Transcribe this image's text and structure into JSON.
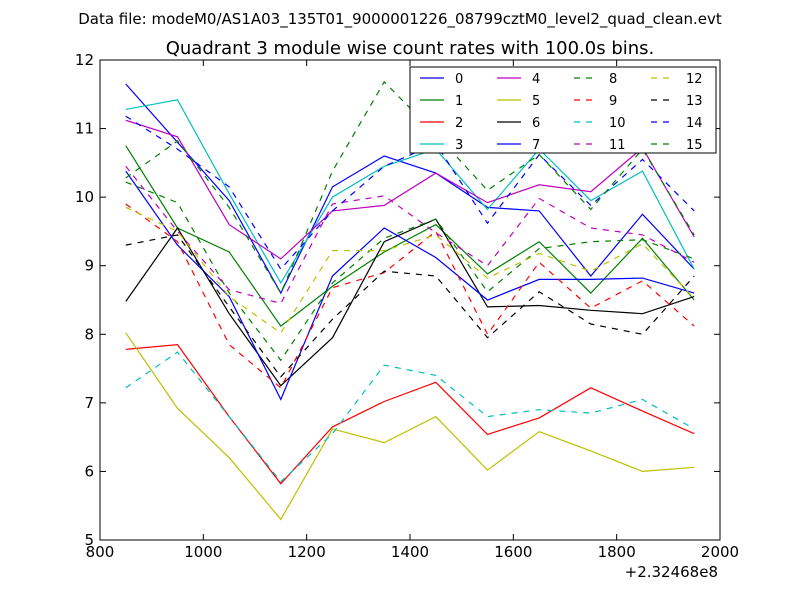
{
  "figure": {
    "suptitle": "Data file: modeM0/AS1A03_135T01_9000001226_08799cztM0_level2_quad_clean.evt",
    "title": "Quadrant 3 module wise count rates with 100.0s bins.",
    "x_offset_label": "+2.32468e8"
  },
  "chart_data": {
    "type": "line",
    "title": "Quadrant 3 module wise count rates with 100.0s bins.",
    "xlabel": "",
    "ylabel": "",
    "xlim": [
      800,
      2000
    ],
    "ylim": [
      5,
      12
    ],
    "x_offset": 232468000,
    "xticks": [
      800,
      1000,
      1200,
      1400,
      1600,
      1800,
      2000
    ],
    "yticks": [
      5,
      6,
      7,
      8,
      9,
      10,
      11,
      12
    ],
    "grid": false,
    "legend_position": "top-right",
    "legend_columns": 4,
    "x": [
      850,
      950,
      1050,
      1150,
      1250,
      1350,
      1450,
      1550,
      1650,
      1750,
      1850,
      1950
    ],
    "series": [
      {
        "name": "0",
        "color": "#0000ff",
        "dash": "solid",
        "values": [
          11.65,
          10.8,
          9.95,
          8.6,
          10.15,
          10.6,
          10.35,
          9.85,
          9.8,
          8.85,
          9.75,
          8.95
        ]
      },
      {
        "name": "1",
        "color": "#008000",
        "dash": "solid",
        "values": [
          10.75,
          9.55,
          9.2,
          8.12,
          8.7,
          9.2,
          9.6,
          8.88,
          9.35,
          8.6,
          9.4,
          8.5
        ]
      },
      {
        "name": "2",
        "color": "#ff0000",
        "dash": "solid",
        "values": [
          7.78,
          7.85,
          6.8,
          5.82,
          6.65,
          7.02,
          7.3,
          6.54,
          6.78,
          7.22,
          6.88,
          6.55
        ]
      },
      {
        "name": "3",
        "color": "#00bfbf",
        "dash": "solid",
        "values": [
          11.28,
          11.42,
          10.05,
          8.75,
          10.0,
          10.45,
          10.7,
          9.82,
          10.7,
          9.95,
          10.38,
          8.95
        ]
      },
      {
        "name": "4",
        "color": "#bf00bf",
        "dash": "solid",
        "values": [
          11.12,
          10.88,
          9.6,
          9.1,
          9.8,
          9.88,
          10.35,
          9.92,
          10.18,
          10.08,
          10.72,
          9.42
        ]
      },
      {
        "name": "5",
        "color": "#bfbf00",
        "dash": "solid",
        "values": [
          8.02,
          6.92,
          6.2,
          5.3,
          6.62,
          6.42,
          6.8,
          6.02,
          6.58,
          6.3,
          6.0,
          6.06
        ]
      },
      {
        "name": "6",
        "color": "#000000",
        "dash": "solid",
        "values": [
          8.48,
          9.55,
          8.3,
          7.25,
          7.95,
          9.35,
          9.68,
          8.4,
          8.42,
          8.35,
          8.3,
          8.55
        ]
      },
      {
        "name": "7",
        "color": "#0000ff",
        "dash": "solid",
        "values": [
          10.38,
          9.3,
          8.55,
          7.05,
          8.85,
          9.55,
          9.12,
          8.5,
          8.8,
          8.8,
          8.82,
          8.6
        ]
      },
      {
        "name": "8",
        "color": "#008000",
        "dash": "dashed",
        "values": [
          10.22,
          9.92,
          8.6,
          7.62,
          8.75,
          9.4,
          9.68,
          8.62,
          9.25,
          9.35,
          9.38,
          9.1
        ]
      },
      {
        "name": "9",
        "color": "#ff0000",
        "dash": "dashed",
        "values": [
          9.9,
          9.35,
          7.85,
          7.22,
          8.68,
          8.9,
          9.5,
          8.0,
          9.05,
          8.38,
          8.78,
          8.12
        ]
      },
      {
        "name": "10",
        "color": "#00bfbf",
        "dash": "dashed",
        "values": [
          7.22,
          7.74,
          6.8,
          5.85,
          6.55,
          7.55,
          7.4,
          6.8,
          6.9,
          6.85,
          7.05,
          6.62
        ]
      },
      {
        "name": "11",
        "color": "#bf00bf",
        "dash": "dashed",
        "values": [
          10.45,
          9.5,
          8.65,
          8.45,
          9.9,
          10.02,
          9.48,
          9.0,
          9.98,
          9.55,
          9.45,
          9.05
        ]
      },
      {
        "name": "12",
        "color": "#bfbf00",
        "dash": "dashed",
        "values": [
          9.85,
          9.5,
          8.55,
          8.02,
          9.22,
          9.22,
          9.45,
          8.82,
          9.18,
          8.92,
          9.32,
          8.52
        ]
      },
      {
        "name": "13",
        "color": "#000000",
        "dash": "dashed",
        "values": [
          9.3,
          9.45,
          8.4,
          7.38,
          8.22,
          8.92,
          8.85,
          7.95,
          8.62,
          8.15,
          8.0,
          8.85
        ]
      },
      {
        "name": "14",
        "color": "#0000ff",
        "dash": "dashed",
        "values": [
          11.18,
          10.7,
          10.15,
          8.95,
          9.8,
          10.45,
          10.78,
          9.62,
          10.62,
          9.88,
          10.55,
          9.8
        ]
      },
      {
        "name": "15",
        "color": "#008000",
        "dash": "dashed",
        "values": [
          10.28,
          10.82,
          9.85,
          8.6,
          10.38,
          11.68,
          10.92,
          10.1,
          10.62,
          9.82,
          10.7,
          9.45
        ]
      }
    ]
  }
}
